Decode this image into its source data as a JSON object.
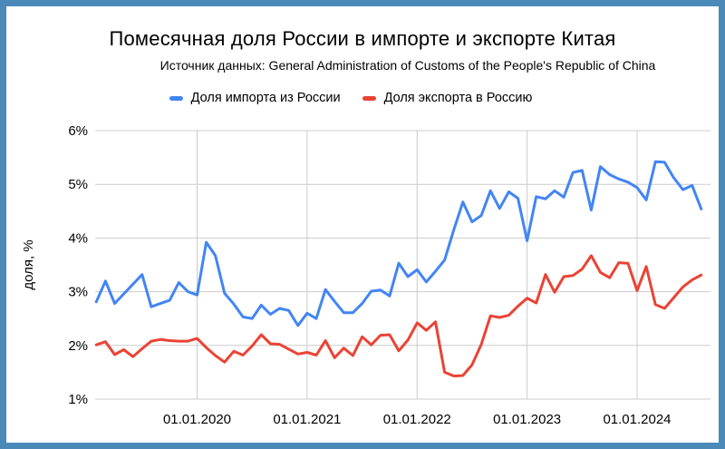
{
  "frame": {
    "border_color": "#4a89b8",
    "background": "#ffffff"
  },
  "chart_data": {
    "type": "line",
    "title": "Помесячная доля России в импорте и экспорте Китая",
    "subtitle": "Источник данных: General Administration of Customs of the People's Republic of China",
    "ylabel": "доля, %",
    "xlabel": "",
    "ylim": [
      1,
      6
    ],
    "grid": true,
    "legend_position": "top",
    "x": [
      "2019-02",
      "2019-03",
      "2019-04",
      "2019-05",
      "2019-06",
      "2019-07",
      "2019-08",
      "2019-09",
      "2019-10",
      "2019-11",
      "2019-12",
      "2020-01",
      "2020-02",
      "2020-03",
      "2020-04",
      "2020-05",
      "2020-06",
      "2020-07",
      "2020-08",
      "2020-09",
      "2020-10",
      "2020-11",
      "2020-12",
      "2021-01",
      "2021-02",
      "2021-03",
      "2021-04",
      "2021-05",
      "2021-06",
      "2021-07",
      "2021-08",
      "2021-09",
      "2021-10",
      "2021-11",
      "2021-12",
      "2022-01",
      "2022-02",
      "2022-03",
      "2022-04",
      "2022-05",
      "2022-06",
      "2022-07",
      "2022-08",
      "2022-09",
      "2022-10",
      "2022-11",
      "2022-12",
      "2023-01",
      "2023-02",
      "2023-03",
      "2023-04",
      "2023-05",
      "2023-06",
      "2023-07",
      "2023-08",
      "2023-09",
      "2023-10",
      "2023-11",
      "2023-12",
      "2024-01",
      "2024-02",
      "2024-03",
      "2024-04",
      "2024-05",
      "2024-06",
      "2024-07",
      "2024-08"
    ],
    "xticks": [
      {
        "date": "2020-01",
        "label": "01.01.2020"
      },
      {
        "date": "2021-01",
        "label": "01.01.2021"
      },
      {
        "date": "2022-01",
        "label": "01.01.2022"
      },
      {
        "date": "2023-01",
        "label": "01.01.2023"
      },
      {
        "date": "2024-01",
        "label": "01.01.2024"
      }
    ],
    "yticks": [
      {
        "value": 1,
        "label": "1%"
      },
      {
        "value": 2,
        "label": "2%"
      },
      {
        "value": 3,
        "label": "3%"
      },
      {
        "value": 4,
        "label": "4%"
      },
      {
        "value": 5,
        "label": "5%"
      },
      {
        "value": 6,
        "label": "6%"
      }
    ],
    "series": [
      {
        "name": "Доля импорта из России",
        "color": "#4285f4",
        "values": [
          2.81,
          3.2,
          2.78,
          2.96,
          3.14,
          3.32,
          2.72,
          2.78,
          2.84,
          3.17,
          3.0,
          2.94,
          3.92,
          3.67,
          2.97,
          2.77,
          2.53,
          2.5,
          2.75,
          2.58,
          2.69,
          2.65,
          2.37,
          2.6,
          2.5,
          3.04,
          2.82,
          2.61,
          2.61,
          2.78,
          3.01,
          3.03,
          2.92,
          3.53,
          3.28,
          3.41,
          3.18,
          3.38,
          3.59,
          4.15,
          4.67,
          4.3,
          4.42,
          4.88,
          4.55,
          4.86,
          4.74,
          3.95,
          4.77,
          4.73,
          4.88,
          4.76,
          5.22,
          5.26,
          4.52,
          5.33,
          5.18,
          5.1,
          5.04,
          4.94,
          4.71,
          5.42,
          5.41,
          5.12,
          4.9,
          4.98,
          4.54
        ]
      },
      {
        "name": "Доля экспорта в Россию",
        "color": "#ea4335",
        "values": [
          2.01,
          2.07,
          1.83,
          1.92,
          1.79,
          1.94,
          2.08,
          2.11,
          2.09,
          2.08,
          2.08,
          2.13,
          1.96,
          1.81,
          1.69,
          1.89,
          1.82,
          1.99,
          2.2,
          2.03,
          2.02,
          1.93,
          1.84,
          1.87,
          1.82,
          2.09,
          1.77,
          1.95,
          1.81,
          2.16,
          2.01,
          2.19,
          2.2,
          1.9,
          2.1,
          2.42,
          2.28,
          2.44,
          1.5,
          1.43,
          1.44,
          1.64,
          2.02,
          2.55,
          2.52,
          2.56,
          2.73,
          2.88,
          2.79,
          3.32,
          2.99,
          3.28,
          3.3,
          3.42,
          3.67,
          3.36,
          3.26,
          3.54,
          3.53,
          3.02,
          3.47,
          2.76,
          2.69,
          2.89,
          3.09,
          3.22,
          3.31
        ]
      }
    ]
  }
}
